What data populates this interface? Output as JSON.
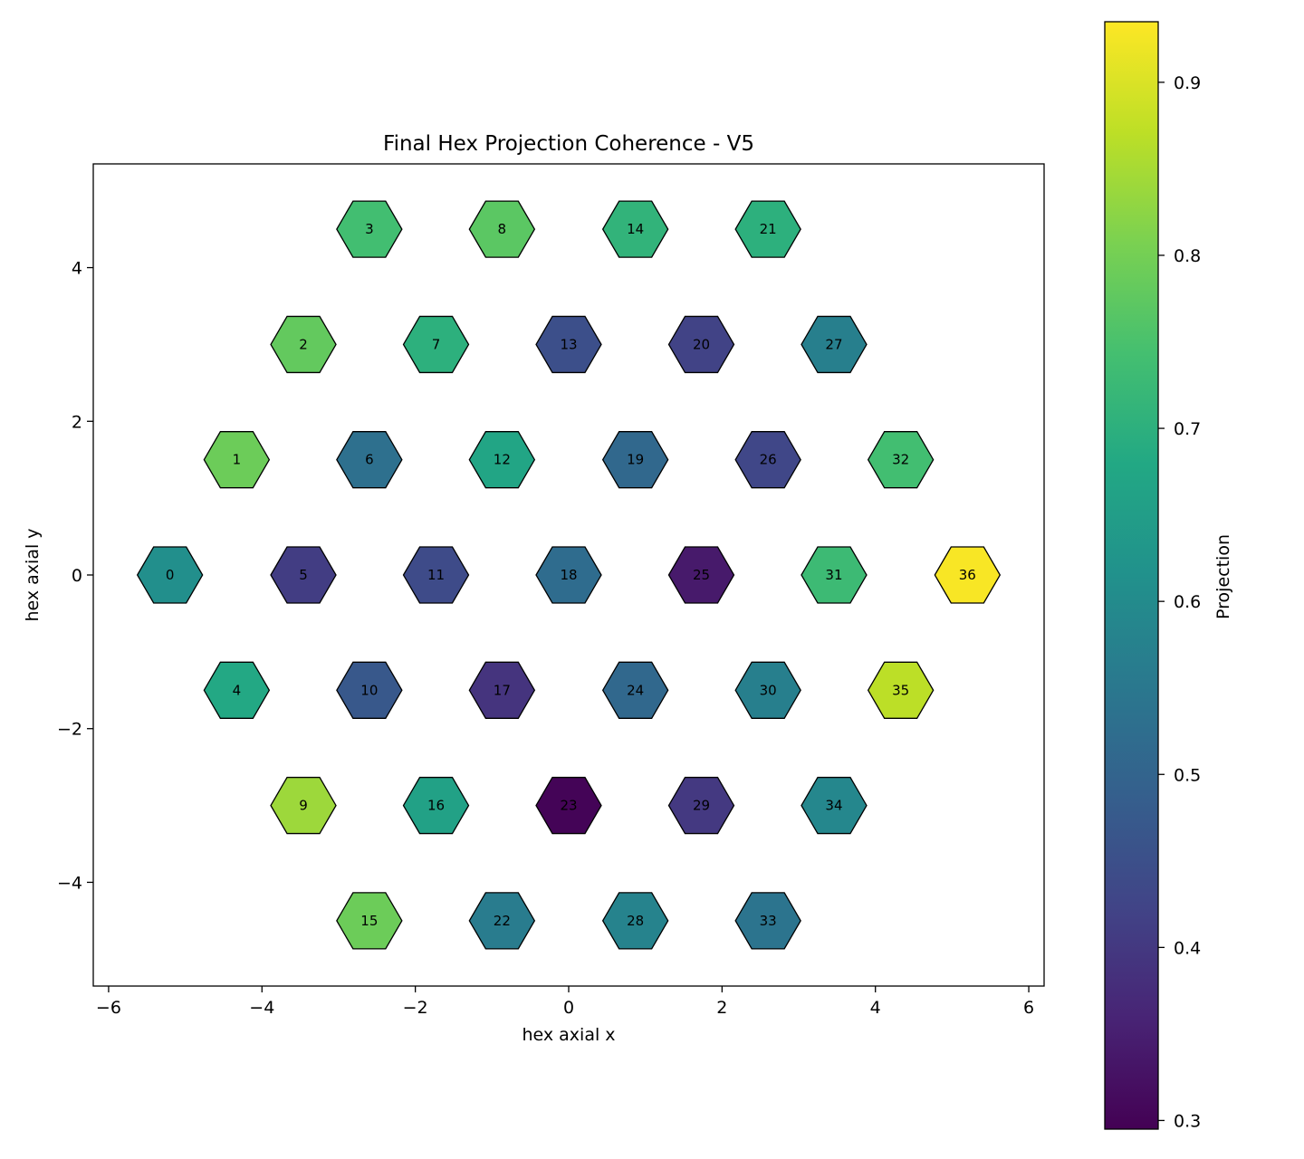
{
  "chart_data": {
    "type": "scatter",
    "marker": "hexagon",
    "title": "Final Hex Projection Coherence - V5",
    "xlabel": "hex axial x",
    "ylabel": "hex axial y",
    "xlim": [
      -6.2,
      6.2
    ],
    "ylim": [
      -5.35,
      5.35
    ],
    "xticks": [
      -6,
      -4,
      -2,
      0,
      2,
      4,
      6
    ],
    "yticks": [
      -4,
      -2,
      0,
      2,
      4
    ],
    "xtick_labels": [
      "−6",
      "−4",
      "−2",
      "0",
      "2",
      "4",
      "6"
    ],
    "ytick_labels": [
      "−4",
      "−2",
      "0",
      "2",
      "4"
    ],
    "grid": false,
    "colormap": "viridis",
    "colorbar": {
      "label": "Projection",
      "range": [
        0.295,
        0.935
      ],
      "ticks": [
        0.3,
        0.4,
        0.5,
        0.6,
        0.7,
        0.8,
        0.9
      ],
      "tick_labels": [
        "0.3",
        "0.4",
        "0.5",
        "0.6",
        "0.7",
        "0.8",
        "0.9"
      ]
    },
    "points": [
      {
        "id": "0",
        "x": -5.2,
        "y": 0.0,
        "value": 0.61
      },
      {
        "id": "1",
        "x": -4.33,
        "y": 1.5,
        "value": 0.79
      },
      {
        "id": "2",
        "x": -3.46,
        "y": 3.0,
        "value": 0.78
      },
      {
        "id": "3",
        "x": -2.6,
        "y": 4.5,
        "value": 0.74
      },
      {
        "id": "4",
        "x": -4.33,
        "y": -1.5,
        "value": 0.68
      },
      {
        "id": "5",
        "x": -3.46,
        "y": 0.0,
        "value": 0.41
      },
      {
        "id": "6",
        "x": -2.6,
        "y": 1.5,
        "value": 0.53
      },
      {
        "id": "7",
        "x": -1.73,
        "y": 3.0,
        "value": 0.7
      },
      {
        "id": "8",
        "x": -0.87,
        "y": 4.5,
        "value": 0.77
      },
      {
        "id": "9",
        "x": -3.46,
        "y": -3.0,
        "value": 0.84
      },
      {
        "id": "10",
        "x": -2.6,
        "y": -1.5,
        "value": 0.47
      },
      {
        "id": "11",
        "x": -1.73,
        "y": 0.0,
        "value": 0.44
      },
      {
        "id": "12",
        "x": -0.87,
        "y": 1.5,
        "value": 0.67
      },
      {
        "id": "13",
        "x": 0.0,
        "y": 3.0,
        "value": 0.45
      },
      {
        "id": "14",
        "x": 0.87,
        "y": 4.5,
        "value": 0.71
      },
      {
        "id": "15",
        "x": -2.6,
        "y": -4.5,
        "value": 0.79
      },
      {
        "id": "16",
        "x": -1.73,
        "y": -3.0,
        "value": 0.66
      },
      {
        "id": "17",
        "x": -0.87,
        "y": -1.5,
        "value": 0.39
      },
      {
        "id": "18",
        "x": 0.0,
        "y": 0.0,
        "value": 0.52
      },
      {
        "id": "19",
        "x": 0.87,
        "y": 1.5,
        "value": 0.51
      },
      {
        "id": "20",
        "x": 1.73,
        "y": 3.0,
        "value": 0.42
      },
      {
        "id": "21",
        "x": 2.6,
        "y": 4.5,
        "value": 0.7
      },
      {
        "id": "22",
        "x": -0.87,
        "y": -4.5,
        "value": 0.56
      },
      {
        "id": "23",
        "x": 0.0,
        "y": -3.0,
        "value": 0.3
      },
      {
        "id": "24",
        "x": 0.87,
        "y": -1.5,
        "value": 0.51
      },
      {
        "id": "25",
        "x": 1.73,
        "y": 0.0,
        "value": 0.34
      },
      {
        "id": "26",
        "x": 2.6,
        "y": 1.5,
        "value": 0.43
      },
      {
        "id": "27",
        "x": 3.46,
        "y": 3.0,
        "value": 0.57
      },
      {
        "id": "28",
        "x": 0.87,
        "y": -4.5,
        "value": 0.58
      },
      {
        "id": "29",
        "x": 1.73,
        "y": -3.0,
        "value": 0.4
      },
      {
        "id": "30",
        "x": 2.6,
        "y": -1.5,
        "value": 0.57
      },
      {
        "id": "31",
        "x": 3.46,
        "y": 0.0,
        "value": 0.73
      },
      {
        "id": "32",
        "x": 4.33,
        "y": 1.5,
        "value": 0.74
      },
      {
        "id": "33",
        "x": 2.6,
        "y": -4.5,
        "value": 0.54
      },
      {
        "id": "34",
        "x": 3.46,
        "y": -3.0,
        "value": 0.59
      },
      {
        "id": "35",
        "x": 4.33,
        "y": -1.5,
        "value": 0.87
      },
      {
        "id": "36",
        "x": 5.2,
        "y": 0.0,
        "value": 0.93
      }
    ]
  }
}
